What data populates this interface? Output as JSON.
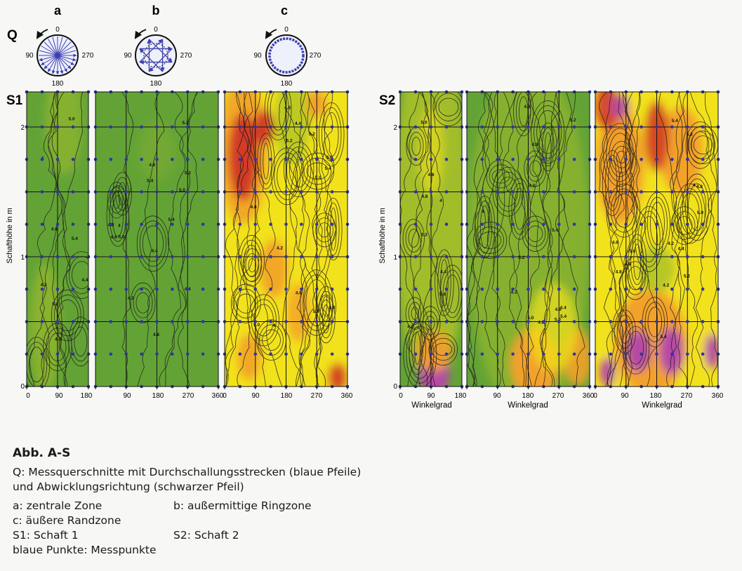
{
  "figure": {
    "column_labels": [
      "a",
      "b",
      "c"
    ],
    "row_label_q": "Q",
    "panels": [
      {
        "label": "S1"
      },
      {
        "label": "S2"
      }
    ],
    "diagram_angles": [
      "0",
      "90",
      "270",
      "180"
    ],
    "y_axis_label": "Schafthöhe in m",
    "y_ticks": [
      "0",
      "1",
      "2"
    ],
    "x_ticks_half": [
      "0",
      "90",
      "180"
    ],
    "x_ticks_full": [
      "0",
      "90",
      "180",
      "270",
      "360"
    ],
    "x_axis_label": "Winkelgrad",
    "contour_labels_s1": [
      "5.2",
      "5.4",
      "4.8",
      "5.0",
      "4.6",
      "4.4",
      "4.2",
      "4"
    ],
    "contour_labels_s2": [
      "4.8",
      "5.2",
      "5.0",
      "5.4",
      "4.6",
      "4.2",
      "4.4",
      "4"
    ]
  },
  "colors": {
    "green": "#63a336",
    "yellow_green": "#a8c02a",
    "yellow": "#f2e21a",
    "orange": "#f2a12a",
    "red": "#d23a26",
    "magenta": "#b64aa6",
    "point_blue": "#2f35a8",
    "arrow_blue": "#3d3fb0"
  },
  "caption": {
    "title": "Abb. A-S",
    "line1": "Q: Messquerschnitte mit Durchschallungsstrecken (blaue Pfeile)",
    "line2": "und Abwicklungsrichtung (schwarzer Pfeil)",
    "a_text": "a: zentrale Zone",
    "b_text": "b: außermittige Ringzone",
    "c_text": "c: äußere Randzone",
    "s1_text": "S1: Schaft 1",
    "s2_text": "S2: Schaft 2",
    "points_text": "blaue Punkte: Messpunkte"
  }
}
